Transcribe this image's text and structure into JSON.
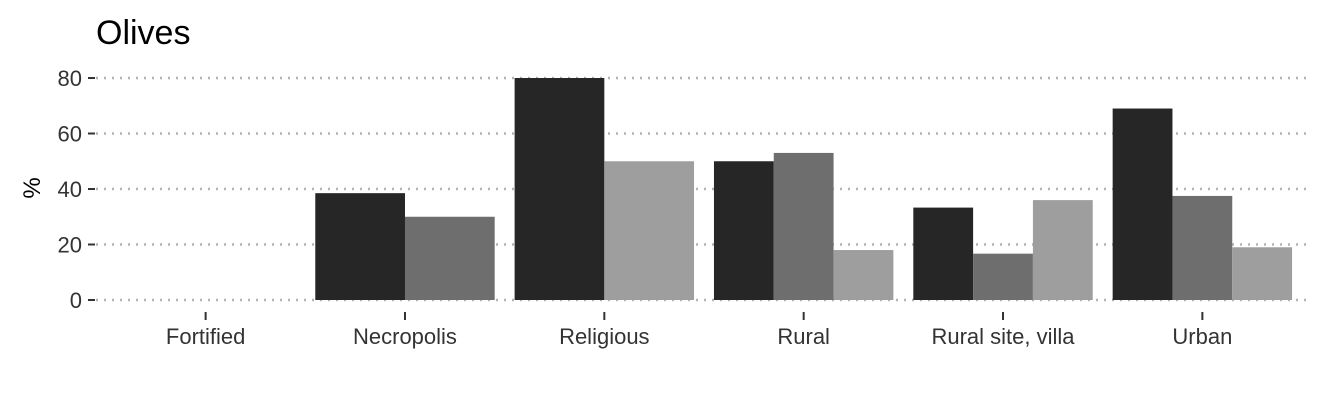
{
  "chart_data": {
    "type": "bar",
    "title": "Olives",
    "xlabel": "",
    "ylabel": "%",
    "ylim": [
      0,
      80
    ],
    "yticks": [
      0,
      20,
      40,
      60,
      80
    ],
    "grid": "horizontal-dotted",
    "categories": [
      "Fortified",
      "Necropolis",
      "Religious",
      "Rural",
      "Rural site, villa",
      "Urban"
    ],
    "series": [
      {
        "color": "#262626",
        "values": [
          null,
          38.5,
          80,
          50,
          33.3,
          69
        ]
      },
      {
        "color": "#6e6e6e",
        "values": [
          null,
          30,
          null,
          53,
          16.7,
          37.5
        ]
      },
      {
        "color": "#9e9e9e",
        "values": [
          null,
          null,
          50,
          18,
          36,
          19
        ]
      }
    ]
  }
}
